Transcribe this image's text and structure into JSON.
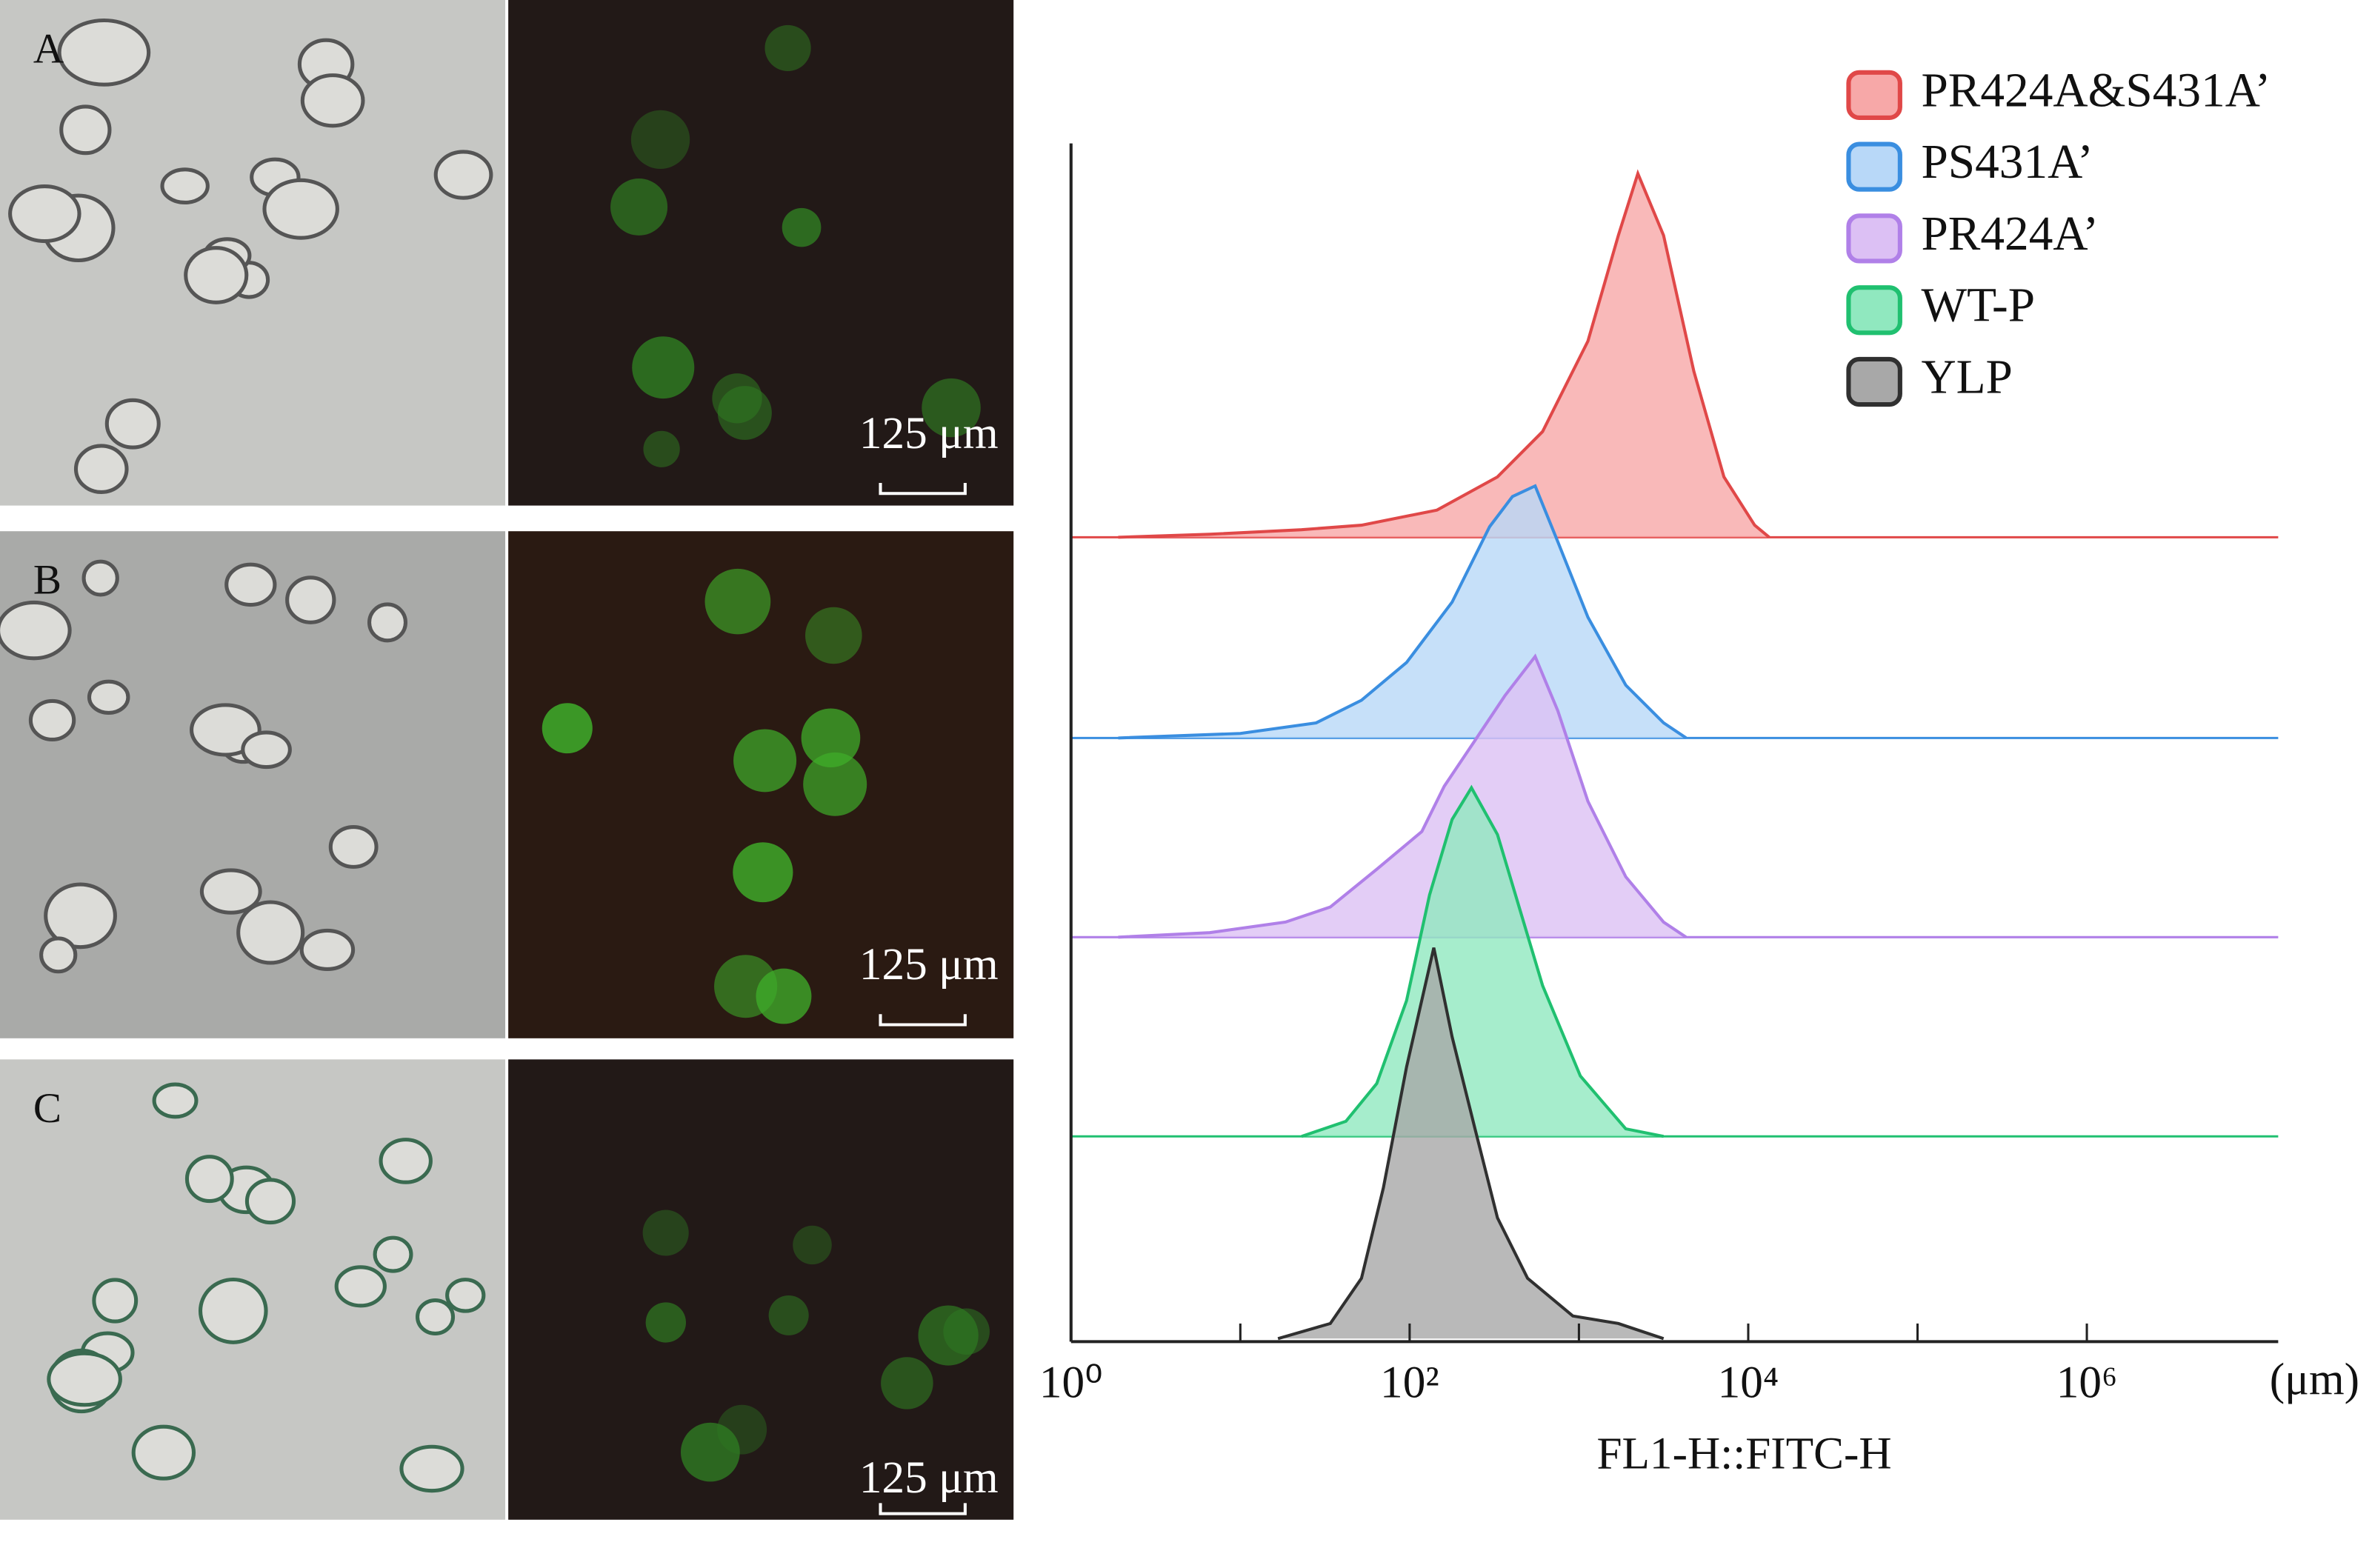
{
  "panels": [
    {
      "label": "A",
      "scale_bar": "125 μm"
    },
    {
      "label": "B",
      "scale_bar": "125 μm"
    },
    {
      "label": "C",
      "scale_bar": "125 μm"
    }
  ],
  "chart_data": {
    "type": "ridgeline",
    "xlabel": "FL1-H::FITC-H",
    "xunit": "(μm)",
    "xscale": "log",
    "xlim": [
      1,
      13500000
    ],
    "xticks": [
      {
        "value": 1,
        "label": "10⁰"
      },
      {
        "value": 100,
        "label": "10²"
      },
      {
        "value": 10000,
        "label": "10⁴"
      },
      {
        "value": 1000000,
        "label": "10⁶"
      }
    ],
    "xminor_ticks": [
      10,
      1000,
      100000
    ],
    "ylim": [
      0,
      260
    ],
    "legend": "top-right",
    "series": [
      {
        "name": "PR424A&S431A’",
        "color": "#e04848",
        "fill": "#f7a8a8",
        "x": [
          1.9,
          6.6,
          23,
          52,
          145,
          330,
          610,
          1130,
          1710,
          2230,
          3160,
          4770,
          7190,
          10900,
          13300
        ],
        "values": [
          0,
          2,
          5,
          8,
          18,
          40,
          70,
          130,
          200,
          241,
          200,
          110,
          40,
          8,
          0
        ]
      },
      {
        "name": "PS431A’",
        "color": "#3a8ee0",
        "fill": "#b8d8f8",
        "x": [
          1.9,
          10,
          28,
          52,
          96,
          178,
          297,
          405,
          551,
          750,
          1130,
          1890,
          3160,
          4300
        ],
        "values": [
          0,
          3,
          10,
          25,
          50,
          90,
          140,
          160,
          167,
          130,
          80,
          35,
          10,
          0
        ]
      },
      {
        "name": "PR424A’",
        "color": "#b080e8",
        "fill": "#dcc0f4",
        "x": [
          1.9,
          6.6,
          18.5,
          34,
          64,
          118,
          160,
          242,
          365,
          551,
          750,
          1130,
          1890,
          3160,
          4300
        ],
        "values": [
          0,
          3,
          10,
          20,
          45,
          70,
          100,
          130,
          160,
          186,
          150,
          90,
          40,
          10,
          0
        ]
      },
      {
        "name": "WT-P",
        "color": "#20c070",
        "fill": "#90e8bf",
        "x": [
          23,
          42,
          64,
          96,
          131,
          178,
          232,
          330,
          449,
          610,
          1020,
          1890,
          3160
        ],
        "values": [
          0,
          10,
          35,
          90,
          160,
          210,
          231,
          200,
          150,
          100,
          40,
          5,
          0
        ]
      },
      {
        "name": "YLP",
        "color": "#303030",
        "fill": "#a8a8a8",
        "x": [
          16.7,
          34,
          52,
          70,
          96,
          139,
          178,
          242,
          330,
          497,
          921,
          1710,
          3160
        ],
        "values": [
          0,
          10,
          40,
          100,
          180,
          259,
          200,
          140,
          80,
          40,
          15,
          10,
          0
        ]
      }
    ]
  }
}
